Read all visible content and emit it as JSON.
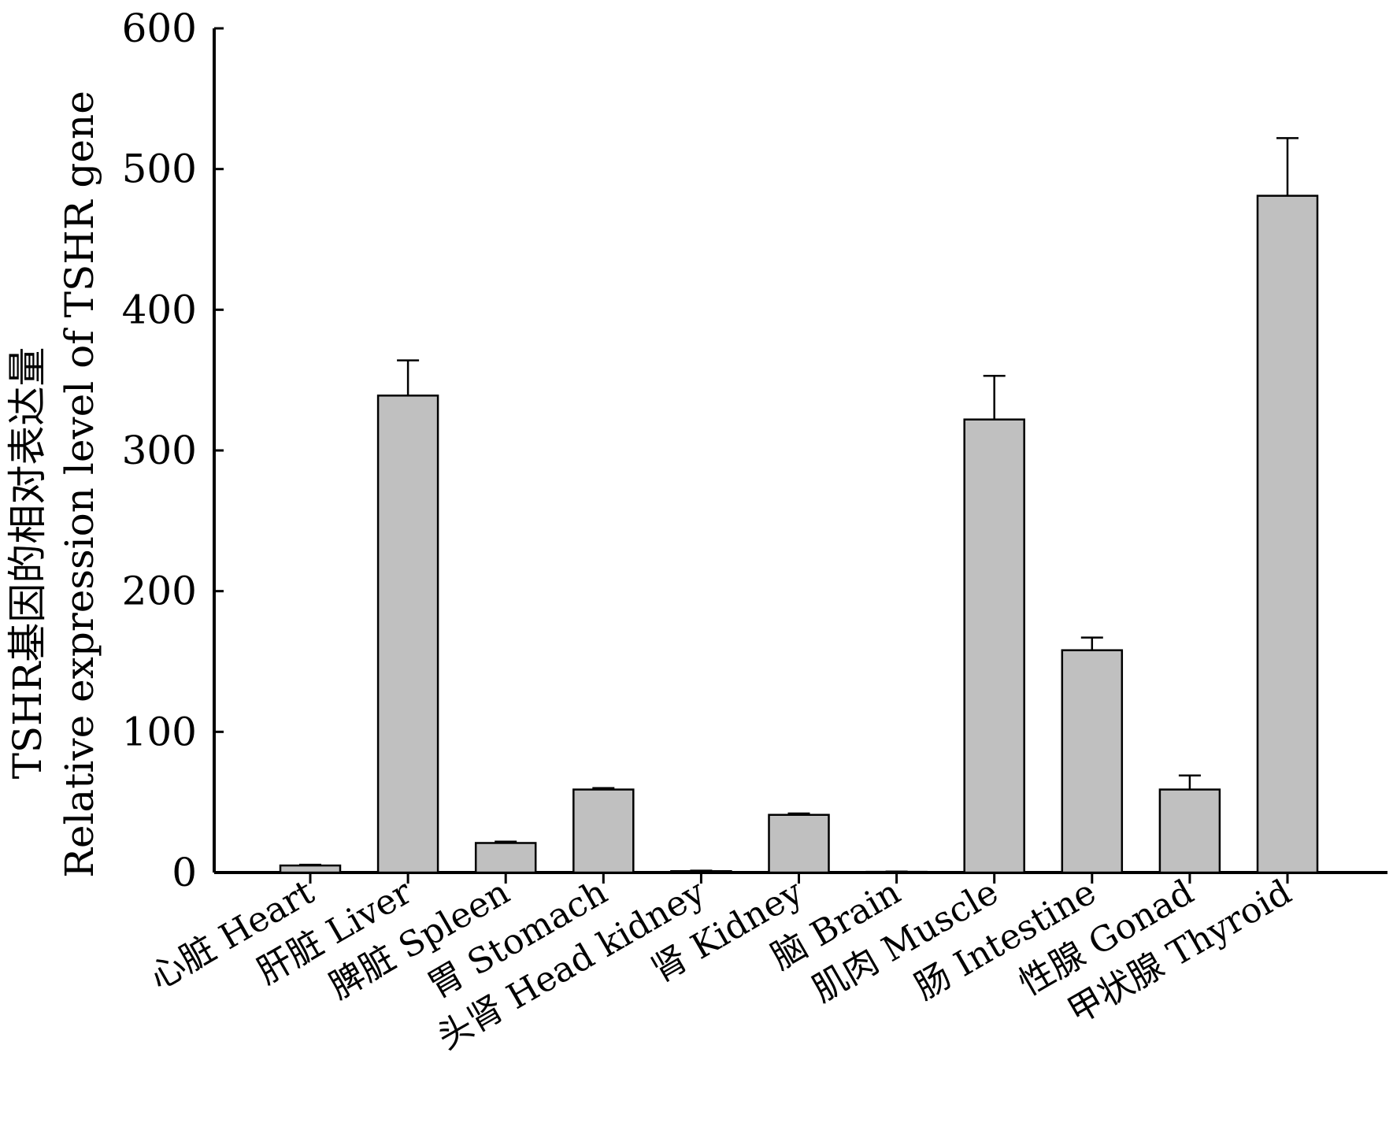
{
  "chart_data": {
    "type": "bar",
    "categories": [
      "心脏 Heart",
      "肝脏 Liver",
      "脾脏 Spleen",
      "胃 Stomach",
      "头肾 Head kidney",
      "肾 Kidney",
      "脑 Brain",
      "肌肉 Muscle",
      "肠 Intestine",
      "性腺 Gonad",
      "甲状腺 Thyroid"
    ],
    "values": [
      5,
      339,
      21,
      59,
      1,
      41,
      0.5,
      322,
      158,
      59,
      481
    ],
    "errors": [
      0.5,
      25,
      1,
      1,
      0.3,
      1,
      0.2,
      31,
      9,
      10,
      41
    ],
    "ylabel_line1": "TSHR基因的相对表达量",
    "ylabel_line2": "Relative expression level of TSHR gene",
    "ylim": [
      0,
      600
    ],
    "yticks": [
      0,
      100,
      200,
      300,
      400,
      500,
      600
    ],
    "grid": false,
    "bar_color": "#c0c0c0"
  }
}
